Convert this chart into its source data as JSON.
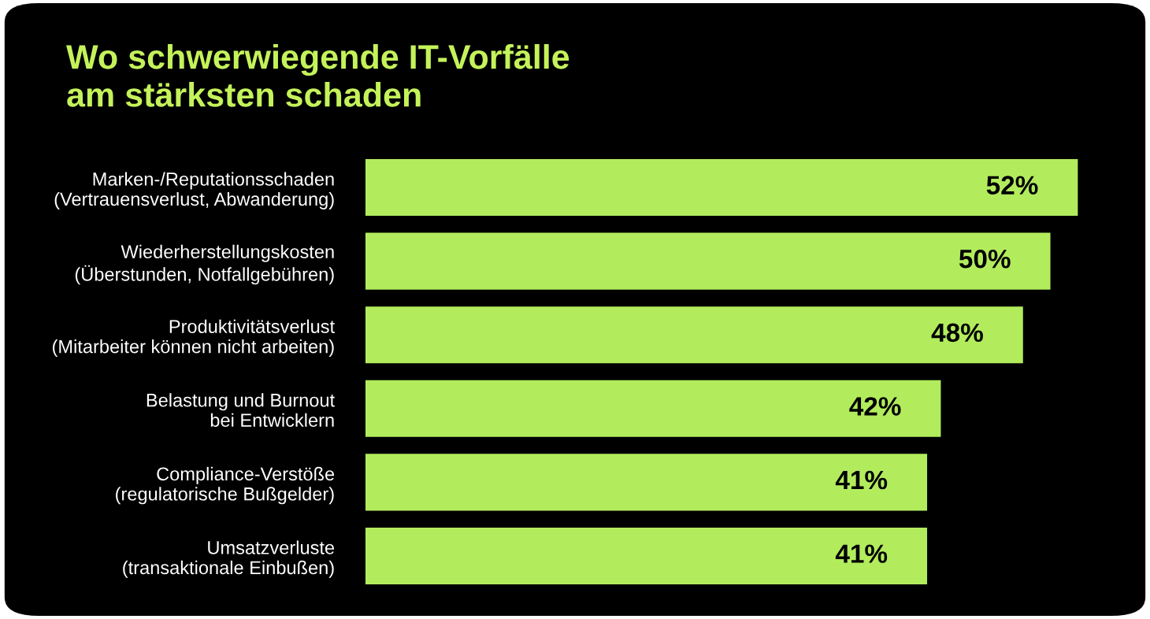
{
  "chart_data": {
    "type": "bar",
    "orientation": "horizontal",
    "title": "Wo schwerwiegende IT-Vorfälle\nam stärksten schaden",
    "categories": [
      "Marken-/Reputationsschaden\n(Vertrauensverlust, Abwanderung)",
      "Wiederherstellungskosten\n(Überstunden, Notfallgebühren)",
      "Produktivitätsverlust\n(Mitarbeiter können nicht arbeiten)",
      "Belastung und Burnout\nbei Entwicklern",
      "Compliance-Verstöße\n(regulatorische Bußgelder)",
      "Umsatzverluste\n(transaktionale Einbußen)"
    ],
    "values": [
      52,
      50,
      48,
      42,
      41,
      41
    ],
    "value_labels": [
      "52%",
      "50%",
      "48%",
      "42%",
      "41%",
      "41%"
    ],
    "color": "#b2ec5d"
  }
}
